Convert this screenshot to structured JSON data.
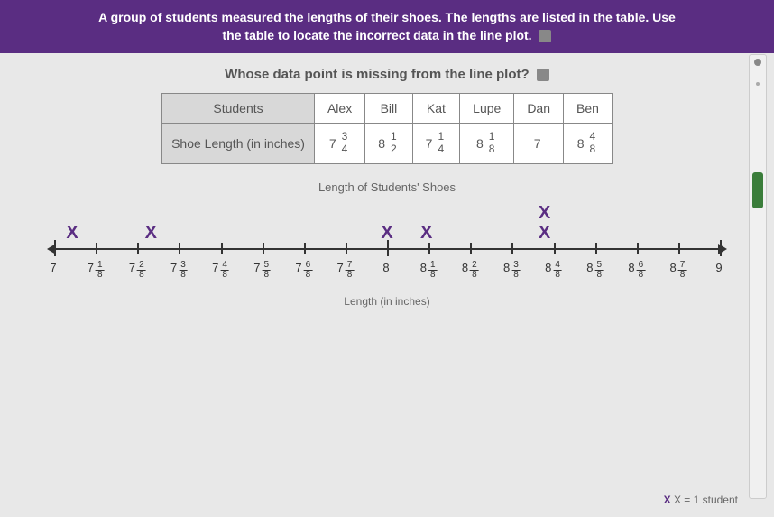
{
  "header": {
    "line1": "A group of students measured the lengths of their shoes. The lengths are listed in the table. Use",
    "line2": "the table to locate the incorrect data in the line plot.",
    "bg_color": "#5a2d82",
    "text_color": "#ffffff"
  },
  "question": "Whose data point is missing from the line plot?",
  "table": {
    "row1_header": "Students",
    "row2_header": "Shoe Length (in inches)",
    "students": [
      "Alex",
      "Bill",
      "Kat",
      "Lupe",
      "Dan",
      "Ben"
    ],
    "lengths": [
      {
        "whole": "7",
        "num": "3",
        "den": "4"
      },
      {
        "whole": "8",
        "num": "1",
        "den": "2"
      },
      {
        "whole": "7",
        "num": "1",
        "den": "4"
      },
      {
        "whole": "8",
        "num": "1",
        "den": "8"
      },
      {
        "whole": "7",
        "num": null,
        "den": null
      },
      {
        "whole": "8",
        "num": "4",
        "den": "8"
      }
    ]
  },
  "plot": {
    "caption": "Length of Students' Shoes",
    "axis_label": "Length (in inches)",
    "legend": "X = 1 student",
    "x_color": "#5a2d82",
    "ticks": [
      {
        "whole": "7",
        "num": null,
        "den": null
      },
      {
        "whole": "7",
        "num": "1",
        "den": "8"
      },
      {
        "whole": "7",
        "num": "2",
        "den": "8"
      },
      {
        "whole": "7",
        "num": "3",
        "den": "8"
      },
      {
        "whole": "7",
        "num": "4",
        "den": "8"
      },
      {
        "whole": "7",
        "num": "5",
        "den": "8"
      },
      {
        "whole": "7",
        "num": "6",
        "den": "8"
      },
      {
        "whole": "7",
        "num": "7",
        "den": "8"
      },
      {
        "whole": "8",
        "num": null,
        "den": null
      },
      {
        "whole": "8",
        "num": "1",
        "den": "8"
      },
      {
        "whole": "8",
        "num": "2",
        "den": "8"
      },
      {
        "whole": "8",
        "num": "3",
        "den": "8"
      },
      {
        "whole": "8",
        "num": "4",
        "den": "8"
      },
      {
        "whole": "8",
        "num": "5",
        "den": "8"
      },
      {
        "whole": "8",
        "num": "6",
        "den": "8"
      },
      {
        "whole": "8",
        "num": "7",
        "den": "8"
      },
      {
        "whole": "9",
        "num": null,
        "den": null
      }
    ],
    "marks": [
      {
        "tick_index": 0,
        "stack": 1
      },
      {
        "tick_index": 2,
        "stack": 1
      },
      {
        "tick_index": 8,
        "stack": 1
      },
      {
        "tick_index": 9,
        "stack": 1
      },
      {
        "tick_index": 12,
        "stack": 2
      }
    ]
  }
}
